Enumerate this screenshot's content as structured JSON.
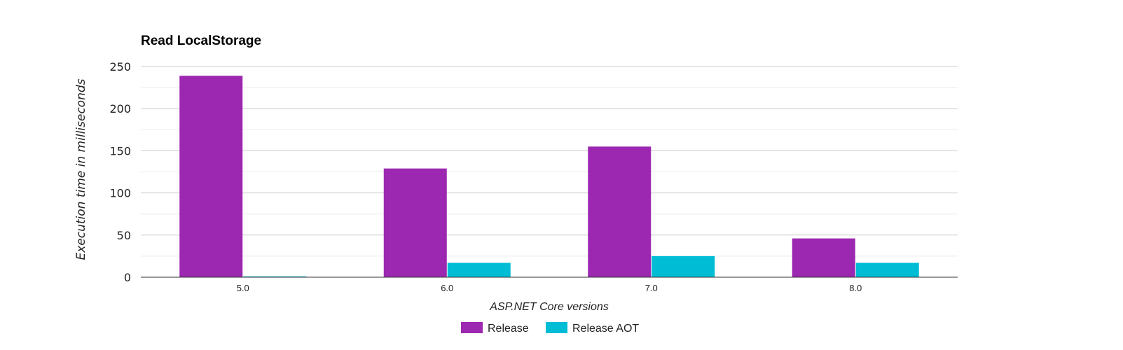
{
  "chart_data": {
    "type": "bar",
    "title": "Read LocalStorage",
    "xlabel": "ASP.NET Core versions",
    "ylabel": "Execution time in milliseconds",
    "categories": [
      "5.0",
      "6.0",
      "7.0",
      "8.0"
    ],
    "yticks": [
      "0",
      "50",
      "100",
      "150",
      "200",
      "250"
    ],
    "ylim": [
      0,
      250
    ],
    "grid": true,
    "legend_position": "bottom",
    "series": [
      {
        "name": "Release",
        "color": "#9c27b0",
        "values": [
          239,
          129,
          155,
          46
        ]
      },
      {
        "name": "Release AOT",
        "color": "#00bcd4",
        "values": [
          1,
          17,
          25,
          17
        ]
      }
    ]
  }
}
